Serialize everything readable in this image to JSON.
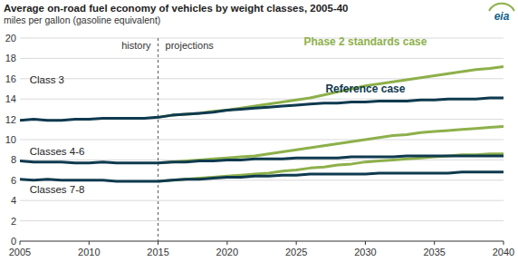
{
  "chart_data": {
    "type": "line",
    "title": "Average on-road fuel economy of vehicles by weight classes, 2005-40",
    "subtitle": "miles per gallon (gasoline equivalent)",
    "logo": "eia",
    "x": [
      2005,
      2006,
      2007,
      2008,
      2009,
      2010,
      2011,
      2012,
      2013,
      2014,
      2015,
      2016,
      2017,
      2018,
      2019,
      2020,
      2021,
      2022,
      2023,
      2024,
      2025,
      2026,
      2027,
      2028,
      2029,
      2030,
      2031,
      2032,
      2033,
      2034,
      2035,
      2036,
      2037,
      2038,
      2039,
      2040
    ],
    "xlim": [
      2005,
      2040
    ],
    "xticks": [
      2005,
      2010,
      2015,
      2020,
      2025,
      2030,
      2035,
      2040
    ],
    "ylim": [
      0,
      20
    ],
    "yticks": [
      0,
      2,
      4,
      6,
      8,
      10,
      12,
      14,
      16,
      18,
      20
    ],
    "grid": true,
    "series": [
      {
        "color": "#8db04a",
        "values": [
          null,
          null,
          null,
          null,
          null,
          null,
          null,
          null,
          null,
          null,
          12.2,
          12.4,
          12.5,
          12.6,
          12.8,
          12.9,
          13.1,
          13.3,
          13.5,
          13.7,
          13.9,
          14.1,
          14.4,
          14.7,
          15.0,
          15.3,
          15.5,
          15.7,
          15.9,
          16.1,
          16.3,
          16.5,
          16.7,
          16.9,
          17.0,
          17.2
        ]
      },
      {
        "color": "#8db04a",
        "values": [
          null,
          null,
          null,
          null,
          null,
          null,
          null,
          null,
          null,
          null,
          7.7,
          7.8,
          7.9,
          8.0,
          8.1,
          8.2,
          8.3,
          8.4,
          8.6,
          8.8,
          9.0,
          9.2,
          9.4,
          9.6,
          9.8,
          10.0,
          10.2,
          10.4,
          10.5,
          10.7,
          10.8,
          10.9,
          11.0,
          11.1,
          11.2,
          11.3
        ]
      },
      {
        "color": "#8db04a",
        "values": [
          null,
          null,
          null,
          null,
          null,
          null,
          null,
          null,
          null,
          null,
          5.9,
          6.0,
          6.1,
          6.2,
          6.3,
          6.4,
          6.5,
          6.6,
          6.7,
          6.9,
          7.0,
          7.2,
          7.3,
          7.5,
          7.6,
          7.8,
          7.9,
          8.0,
          8.1,
          8.2,
          8.3,
          8.4,
          8.5,
          8.5,
          8.6,
          8.6
        ]
      },
      {
        "color": "#0f3a4f",
        "values": [
          11.9,
          12.0,
          11.9,
          11.9,
          12.0,
          12.0,
          12.1,
          12.1,
          12.1,
          12.1,
          12.2,
          12.4,
          12.5,
          12.6,
          12.7,
          12.9,
          13.0,
          13.1,
          13.2,
          13.3,
          13.4,
          13.5,
          13.6,
          13.6,
          13.7,
          13.7,
          13.8,
          13.8,
          13.8,
          13.9,
          13.9,
          14.0,
          14.0,
          14.0,
          14.1,
          14.1
        ]
      },
      {
        "color": "#0f3a4f",
        "values": [
          7.9,
          7.8,
          7.8,
          7.8,
          7.7,
          7.7,
          7.8,
          7.7,
          7.7,
          7.7,
          7.7,
          7.8,
          7.8,
          7.9,
          7.9,
          8.0,
          8.0,
          8.1,
          8.1,
          8.1,
          8.2,
          8.2,
          8.2,
          8.2,
          8.3,
          8.3,
          8.3,
          8.3,
          8.4,
          8.4,
          8.4,
          8.4,
          8.4,
          8.4,
          8.4,
          8.4
        ]
      },
      {
        "color": "#0f3a4f",
        "values": [
          6.1,
          6.0,
          6.1,
          6.0,
          6.0,
          6.0,
          6.0,
          5.9,
          5.9,
          5.9,
          5.9,
          6.0,
          6.1,
          6.1,
          6.2,
          6.3,
          6.3,
          6.4,
          6.4,
          6.5,
          6.5,
          6.6,
          6.6,
          6.6,
          6.6,
          6.6,
          6.7,
          6.7,
          6.7,
          6.7,
          6.7,
          6.7,
          6.8,
          6.8,
          6.8,
          6.8
        ]
      }
    ],
    "annotations": [
      {
        "text": "Phase 2 standards case",
        "x": 2030,
        "y": 19.3,
        "color": "#8db04a"
      },
      {
        "text": "Reference case",
        "x": 2030,
        "y": 14.6,
        "color": "#0f3a4f"
      },
      {
        "text": "Class 3",
        "x": 2005.7,
        "y": 15.5,
        "color": "#222222"
      },
      {
        "text": "Classes 4-6",
        "x": 2005.7,
        "y": 8.5,
        "color": "#222222"
      },
      {
        "text": "Classes 7-8",
        "x": 2005.7,
        "y": 4.7,
        "color": "#222222"
      }
    ],
    "divider": {
      "x": 2015,
      "left_text": "history",
      "right_text": "projections",
      "line_style": "dashed"
    }
  }
}
